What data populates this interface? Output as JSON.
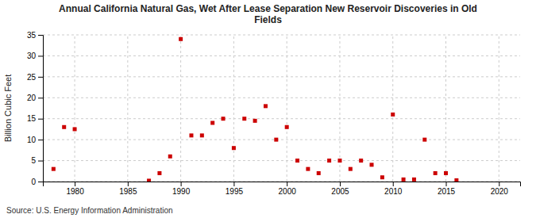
{
  "chart_data": {
    "type": "scatter",
    "title": "Annual California Natural Gas, Wet After Lease Separation New Reservoir Discoveries in Old\nFields",
    "ylabel": "Billion Cubic Feet",
    "source": "Source: U.S. Energy Information Administration",
    "x": [
      1978,
      1979,
      1980,
      1987,
      1988,
      1989,
      1990,
      1991,
      1992,
      1993,
      1994,
      1995,
      1996,
      1997,
      1998,
      1999,
      2000,
      2001,
      2002,
      2003,
      2004,
      2005,
      2006,
      2007,
      2008,
      2009,
      2010,
      2011,
      2012,
      2013,
      2014,
      2015,
      2016
    ],
    "values": [
      3.0,
      13.0,
      12.5,
      0.2,
      2.0,
      6.0,
      34.0,
      11.0,
      11.0,
      14.0,
      15.0,
      8.0,
      15.0,
      14.5,
      18.0,
      10.0,
      13.0,
      5.0,
      3.0,
      2.0,
      5.0,
      5.0,
      3.0,
      5.0,
      4.0,
      1.0,
      16.0,
      0.5,
      0.5,
      10.0,
      2.0,
      2.0,
      0.3
    ],
    "color": "#cc0000",
    "marker": "square",
    "xlim": [
      1977,
      2022
    ],
    "ylim": [
      0,
      35
    ],
    "xticks": [
      1980,
      1985,
      1990,
      1995,
      2000,
      2005,
      2010,
      2015,
      2020
    ],
    "yticks": [
      0,
      5,
      10,
      15,
      20,
      25,
      30,
      35
    ],
    "grid": true
  }
}
